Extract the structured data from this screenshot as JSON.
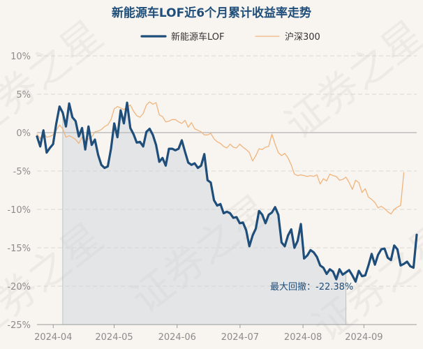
{
  "chart_data": {
    "type": "line",
    "title": "新能源车LOF近6个月累计收益率走势",
    "ylim": [
      -25,
      10
    ],
    "y_ticks": [
      10,
      5,
      0,
      -5,
      -10,
      -15,
      -20,
      -25
    ],
    "y_tick_labels": [
      "10%",
      "5%",
      "0%",
      "-5%",
      "-10%",
      "-15%",
      "-20%",
      "-25%"
    ],
    "x_ticks": [
      "2024-04",
      "2024-05",
      "2024-06",
      "2024-07",
      "2024-08",
      "2024-09"
    ],
    "grid": true,
    "legend_position": "top",
    "annotation": "最大回撤：-22.38%",
    "series": [
      {
        "name": "新能源车LOF",
        "color": "#1f4e7a",
        "values": [
          -0.5,
          -1.8,
          0.3,
          -2.6,
          -2.0,
          -1.5,
          1.2,
          3.4,
          2.6,
          0.8,
          3.8,
          2.0,
          1.5,
          -0.5,
          0.6,
          -2.2,
          0.8,
          -1.6,
          -0.9,
          -2.9,
          -4.2,
          -4.6,
          -4.4,
          -2.1,
          1.2,
          -0.6,
          2.9,
          1.2,
          3.9,
          0.6,
          -0.2,
          -1.3,
          -1.2,
          -1.8,
          0.1,
          0.5,
          -0.3,
          -1.6,
          -3.8,
          -3.3,
          -4.3,
          -2.1,
          -2.1,
          -2.3,
          -2.1,
          -1.0,
          -2.5,
          -3.9,
          -4.2,
          -4.0,
          -4.6,
          -4.3,
          -2.8,
          -6.2,
          -6.5,
          -8.8,
          -9.5,
          -9.3,
          -10.5,
          -10.3,
          -10.5,
          -11.1,
          -11.0,
          -11.8,
          -11.7,
          -12.7,
          -14.8,
          -13.4,
          -12.5,
          -10.2,
          -10.7,
          -11.8,
          -10.7,
          -10.4,
          -9.7,
          -10.7,
          -14.3,
          -14.8,
          -13.4,
          -12.6,
          -15.0,
          -14.1,
          -11.9,
          -16.4,
          -16.0,
          -15.3,
          -15.6,
          -16.2,
          -17.3,
          -17.6,
          -18.4,
          -17.8,
          -18.1,
          -19.1,
          -17.8,
          -18.5,
          -18.2,
          -17.9,
          -18.6,
          -19.4,
          -18.0,
          -18.7,
          -18.6,
          -17.3,
          -15.8,
          -17.2,
          -15.9,
          -15.2,
          -15.1,
          -16.3,
          -16.6,
          -14.7,
          -15.2,
          -17.3,
          -17.1,
          -16.8,
          -17.4,
          -17.6,
          -13.3
        ]
      },
      {
        "name": "沪深300",
        "color": "#f0b47c",
        "values": [
          -0.2,
          -0.8,
          0.0,
          -0.6,
          -0.5,
          -0.3,
          0.3,
          1.0,
          0.5,
          -0.6,
          -0.4,
          -0.6,
          -0.9,
          -1.4,
          -0.6,
          -1.3,
          -0.8,
          -0.6,
          0.1,
          0.2,
          0.4,
          0.8,
          1.0,
          1.7,
          3.1,
          3.4,
          3.2,
          3.0,
          3.3,
          3.6,
          2.8,
          2.2,
          2.0,
          2.5,
          3.6,
          4.0,
          3.7,
          3.9,
          2.3,
          2.1,
          1.4,
          1.5,
          1.7,
          1.7,
          1.4,
          1.2,
          1.6,
          0.7,
          1.3,
          0.5,
          0.3,
          0.1,
          -0.3,
          -0.3,
          -0.1,
          -0.8,
          -1.2,
          -1.4,
          -1.8,
          -2.0,
          -1.5,
          -1.9,
          -2.0,
          -1.5,
          -1.9,
          -2.2,
          -2.6,
          -3.7,
          -3.0,
          -2.1,
          -2.2,
          -1.9,
          -1.8,
          -0.2,
          -1.5,
          -2.6,
          -3.0,
          -2.7,
          -3.3,
          -4.2,
          -5.4,
          -5.6,
          -5.5,
          -5.6,
          -5.7,
          -5.6,
          -5.7,
          -5.5,
          -6.7,
          -6.0,
          -6.3,
          -5.4,
          -5.6,
          -5.7,
          -6.2,
          -6.1,
          -5.8,
          -6.5,
          -7.4,
          -6.2,
          -6.5,
          -7.8,
          -7.3,
          -8.4,
          -8.7,
          -9.1,
          -9.8,
          -9.6,
          -9.9,
          -10.3,
          -10.6,
          -10.0,
          -9.7,
          -9.5,
          -5.2
        ]
      }
    ],
    "drawdown_shade": {
      "start_index": 8,
      "end_index": 96,
      "color": "#c9d3dc"
    }
  },
  "watermark": "证券之星"
}
